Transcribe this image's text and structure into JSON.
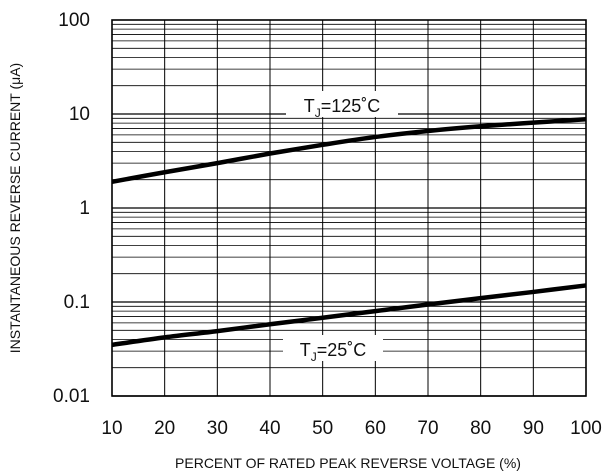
{
  "chart_data": {
    "type": "line",
    "title": "",
    "xlabel": "PERCENT OF RATED PEAK REVERSE VOLTAGE (%)",
    "ylabel": "INSTANTANEOUS REVERSE CURRENT (μA)",
    "xlim": [
      10,
      100
    ],
    "ylim": [
      0.01,
      100
    ],
    "yscale": "log",
    "grid": true,
    "x_ticks": [
      "10",
      "20",
      "30",
      "40",
      "50",
      "60",
      "70",
      "80",
      "90",
      "100"
    ],
    "y_ticks": [
      "0.01",
      "0.1",
      "1",
      "10",
      "100"
    ],
    "series": [
      {
        "name": "TJ=125°C",
        "label_main": "T",
        "label_sub": "J",
        "label_rest": "=125˚C",
        "color": "#000000",
        "x": [
          10,
          20,
          30,
          40,
          50,
          60,
          70,
          80,
          90,
          100
        ],
        "y": [
          1.9,
          2.4,
          3.0,
          3.8,
          4.7,
          5.7,
          6.6,
          7.4,
          8.1,
          8.8
        ]
      },
      {
        "name": "TJ=25°C",
        "label_main": "T",
        "label_sub": "J",
        "label_rest": "=25˚C",
        "color": "#000000",
        "x": [
          10,
          20,
          30,
          40,
          50,
          60,
          70,
          80,
          90,
          100
        ],
        "y": [
          0.035,
          0.042,
          0.049,
          0.058,
          0.068,
          0.08,
          0.094,
          0.11,
          0.128,
          0.15
        ]
      }
    ]
  }
}
